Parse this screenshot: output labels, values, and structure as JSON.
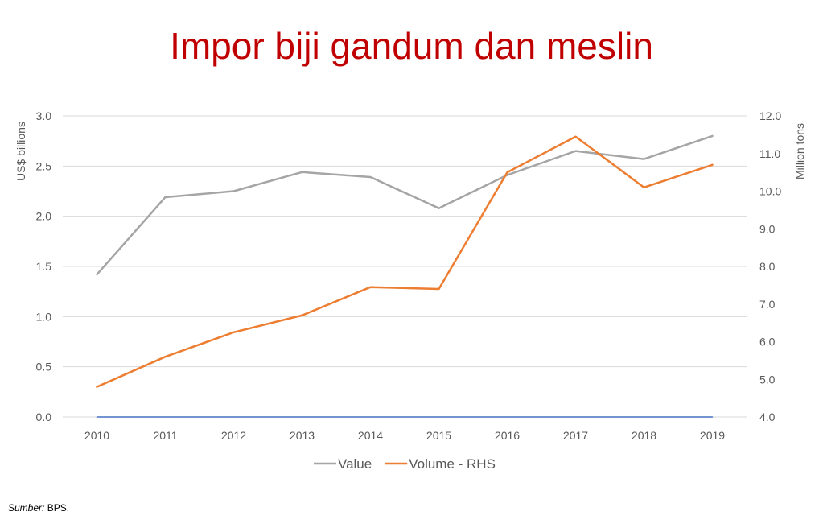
{
  "chart_data": {
    "type": "line",
    "title": "Impor biji gandum dan meslin",
    "categories": [
      "2010",
      "2011",
      "2012",
      "2013",
      "2014",
      "2015",
      "2016",
      "2017",
      "2018",
      "2019"
    ],
    "y_left": {
      "label": "US$ billions",
      "range": [
        0.0,
        3.0
      ],
      "ticks": [
        "0.0",
        "0.5",
        "1.0",
        "1.5",
        "2.0",
        "2.5",
        "3.0"
      ]
    },
    "y_right": {
      "label": "Million tons",
      "range": [
        4.0,
        12.0
      ],
      "ticks": [
        "4.0",
        "5.0",
        "6.0",
        "7.0",
        "8.0",
        "9.0",
        "10.0",
        "11.0",
        "12.0"
      ]
    },
    "grid": true,
    "legend_position": "bottom",
    "series": [
      {
        "name": "Value",
        "axis": "left",
        "color": "#a5a5a5",
        "values": [
          1.42,
          2.19,
          2.25,
          2.44,
          2.39,
          2.08,
          2.41,
          2.65,
          2.57,
          2.8
        ]
      },
      {
        "name": "Volume - RHS",
        "axis": "right",
        "color": "#ed7d31",
        "values": [
          4.8,
          5.6,
          6.25,
          6.7,
          7.45,
          7.4,
          10.5,
          11.45,
          10.1,
          10.7
        ]
      },
      {
        "axis": "left",
        "color": "#4472c4",
        "values": [
          0,
          0,
          0,
          0,
          0,
          0,
          0,
          0,
          0,
          0
        ]
      }
    ]
  },
  "source": {
    "label": "Sumber:",
    "text": "BPS."
  }
}
